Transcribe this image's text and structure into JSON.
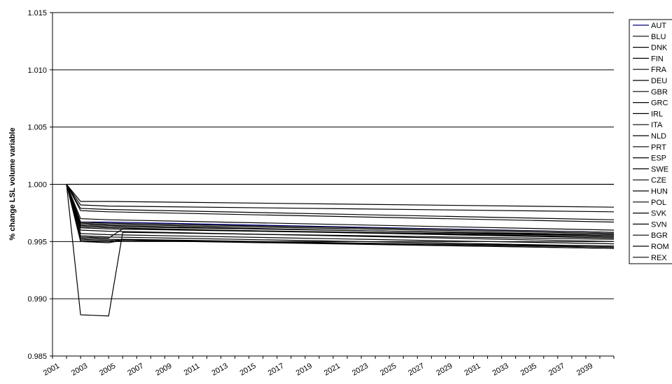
{
  "chart_data": {
    "type": "line",
    "title": "",
    "xlabel": "",
    "ylabel": "% change LSL volume variable",
    "ylim": [
      0.985,
      1.015
    ],
    "yticks": [
      "0.985",
      "0.990",
      "0.995",
      "1.000",
      "1.005",
      "1.010",
      "1.015"
    ],
    "xlim": [
      2001,
      2041
    ],
    "xticks": [
      "2001",
      "2003",
      "2005",
      "2007",
      "2009",
      "2011",
      "2013",
      "2015",
      "2017",
      "2019",
      "2021",
      "2023",
      "2025",
      "2027",
      "2029",
      "2031",
      "2033",
      "2035",
      "2037",
      "2039"
    ],
    "grid": "horizontal",
    "legend_position": "right",
    "series": [
      {
        "name": "AUT",
        "color": "#000080",
        "points": [
          [
            2002,
            1.0
          ],
          [
            2003,
            0.9967
          ],
          [
            2005,
            0.9967
          ],
          [
            2041,
            0.9958
          ]
        ]
      },
      {
        "name": "BLU",
        "color": "#000000",
        "points": [
          [
            2002,
            1.0
          ],
          [
            2003,
            0.9985
          ],
          [
            2005,
            0.9985
          ],
          [
            2041,
            0.998
          ]
        ]
      },
      {
        "name": "DNK",
        "color": "#000000",
        "points": [
          [
            2002,
            1.0
          ],
          [
            2003,
            0.9982
          ],
          [
            2005,
            0.9981
          ],
          [
            2041,
            0.9976
          ]
        ]
      },
      {
        "name": "FIN",
        "color": "#000000",
        "points": [
          [
            2002,
            1.0
          ],
          [
            2003,
            0.9979
          ],
          [
            2005,
            0.9978
          ],
          [
            2041,
            0.9969
          ]
        ]
      },
      {
        "name": "FRA",
        "color": "#000000",
        "points": [
          [
            2002,
            1.0
          ],
          [
            2003,
            0.9977
          ],
          [
            2005,
            0.9976
          ],
          [
            2041,
            0.9967
          ]
        ]
      },
      {
        "name": "DEU",
        "color": "#000000",
        "points": [
          [
            2002,
            1.0
          ],
          [
            2003,
            0.997
          ],
          [
            2005,
            0.9969
          ],
          [
            2041,
            0.996
          ]
        ]
      },
      {
        "name": "GBR",
        "color": "#000000",
        "points": [
          [
            2002,
            1.0
          ],
          [
            2003,
            0.9967
          ],
          [
            2005,
            0.9966
          ],
          [
            2041,
            0.9958
          ]
        ]
      },
      {
        "name": "GRC",
        "color": "#000000",
        "points": [
          [
            2002,
            1.0
          ],
          [
            2003,
            0.9965
          ],
          [
            2005,
            0.9964
          ],
          [
            2041,
            0.9955
          ]
        ]
      },
      {
        "name": "IRL",
        "color": "#000000",
        "points": [
          [
            2002,
            1.0
          ],
          [
            2003,
            0.9963
          ],
          [
            2005,
            0.9962
          ],
          [
            2041,
            0.9953
          ]
        ]
      },
      {
        "name": "ITA",
        "color": "#000000",
        "points": [
          [
            2002,
            1.0
          ],
          [
            2003,
            0.996
          ],
          [
            2005,
            0.9959
          ],
          [
            2041,
            0.995
          ]
        ]
      },
      {
        "name": "NLD",
        "color": "#000000",
        "points": [
          [
            2002,
            1.0
          ],
          [
            2003,
            0.9957
          ],
          [
            2005,
            0.9956
          ],
          [
            2041,
            0.9948
          ]
        ]
      },
      {
        "name": "PRT",
        "color": "#000000",
        "points": [
          [
            2002,
            1.0
          ],
          [
            2003,
            0.9955
          ],
          [
            2005,
            0.9954
          ],
          [
            2041,
            0.9946
          ]
        ]
      },
      {
        "name": "ESP",
        "color": "#000000",
        "points": [
          [
            2002,
            1.0
          ],
          [
            2003,
            0.9953
          ],
          [
            2005,
            0.9952
          ],
          [
            2041,
            0.9944
          ]
        ]
      },
      {
        "name": "SWE",
        "color": "#000000",
        "points": [
          [
            2002,
            1.0
          ],
          [
            2003,
            0.9951
          ],
          [
            2005,
            0.995
          ],
          [
            2006,
            0.9952
          ],
          [
            2041,
            0.9945
          ]
        ]
      },
      {
        "name": "CZE",
        "color": "#000000",
        "points": [
          [
            2002,
            1.0
          ],
          [
            2003,
            0.9886
          ],
          [
            2005,
            0.9885
          ],
          [
            2006,
            0.9958
          ],
          [
            2041,
            0.9952
          ]
        ]
      },
      {
        "name": "HUN",
        "color": "#000000",
        "points": [
          [
            2002,
            1.0
          ],
          [
            2003,
            0.9966
          ],
          [
            2005,
            0.9965
          ],
          [
            2041,
            0.9957
          ]
        ]
      },
      {
        "name": "POL",
        "color": "#000000",
        "points": [
          [
            2002,
            1.0
          ],
          [
            2003,
            0.9954
          ],
          [
            2005,
            0.9953
          ],
          [
            2006,
            0.9961
          ],
          [
            2041,
            0.9955
          ]
        ]
      },
      {
        "name": "SVK",
        "color": "#000000",
        "points": [
          [
            2002,
            1.0
          ],
          [
            2003,
            0.9964
          ],
          [
            2005,
            0.9963
          ],
          [
            2041,
            0.9956
          ]
        ]
      },
      {
        "name": "SVN",
        "color": "#000000",
        "points": [
          [
            2002,
            1.0
          ],
          [
            2003,
            0.9962
          ],
          [
            2005,
            0.9961
          ],
          [
            2041,
            0.9954
          ]
        ]
      },
      {
        "name": "BGR",
        "color": "#000000",
        "points": [
          [
            2002,
            1.0
          ],
          [
            2003,
            0.995
          ],
          [
            2005,
            0.9949
          ],
          [
            2006,
            0.9951
          ],
          [
            2041,
            0.9944
          ]
        ]
      },
      {
        "name": "ROM",
        "color": "#000000",
        "points": [
          [
            2002,
            1.0
          ],
          [
            2003,
            0.9952
          ],
          [
            2005,
            0.9951
          ],
          [
            2041,
            0.9946
          ]
        ]
      },
      {
        "name": "REX",
        "color": "#000000",
        "points": [
          [
            2002,
            1.0
          ],
          [
            2041,
            1.0
          ]
        ]
      }
    ]
  }
}
